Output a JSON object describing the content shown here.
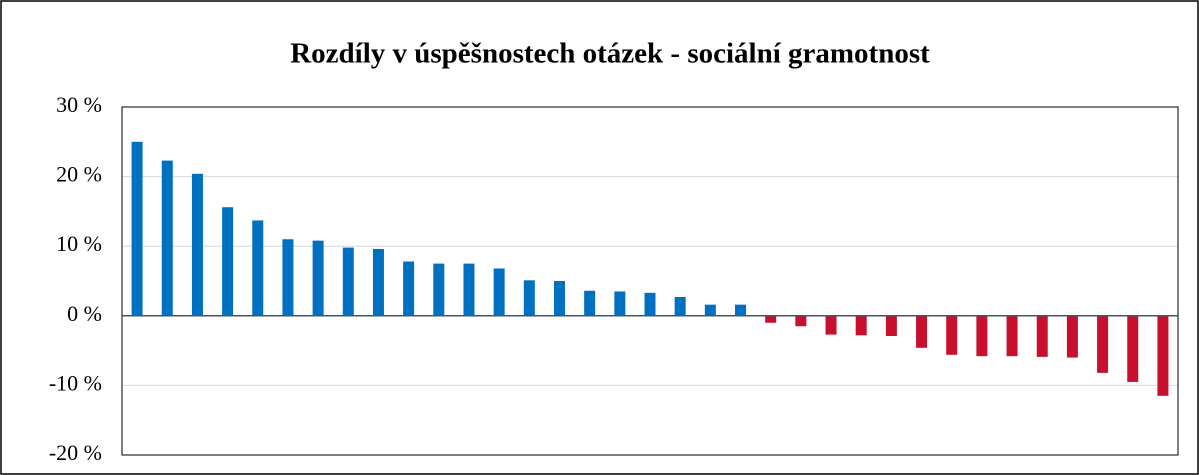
{
  "chart_data": {
    "type": "bar",
    "title": "Rozdíly v úspěšnostech otázek - sociální gramotnost",
    "categories": [
      null,
      null,
      null,
      null,
      null,
      null,
      null,
      null,
      null,
      null,
      null,
      null,
      null,
      null,
      null,
      null,
      null,
      null,
      null,
      null,
      null,
      null,
      null,
      null,
      null,
      null,
      null,
      null,
      null,
      null,
      null,
      null,
      null,
      null,
      null
    ],
    "values": [
      25,
      22.3,
      20.4,
      15.6,
      13.7,
      11,
      10.8,
      9.8,
      9.6,
      7.8,
      7.5,
      7.5,
      6.8,
      5.1,
      5,
      3.6,
      3.5,
      3.3,
      2.7,
      1.6,
      1.6,
      -1,
      -1.5,
      -2.7,
      -2.8,
      -2.9,
      -4.6,
      -5.6,
      -5.8,
      -5.8,
      -5.9,
      -6,
      -8.2,
      -9.5,
      -11.5
    ],
    "color": "#0070c0",
    "negative_color": "#c8102e",
    "ylim": [
      -20,
      30
    ],
    "yticks": [
      {
        "value": -20,
        "label": "-20 %"
      },
      {
        "value": -10,
        "label": "-10 %"
      },
      {
        "value": 0,
        "label": "0 %"
      },
      {
        "value": 10,
        "label": "10 %"
      },
      {
        "value": 20,
        "label": "20 %"
      },
      {
        "value": 30,
        "label": "30 %"
      }
    ],
    "grid": true
  }
}
